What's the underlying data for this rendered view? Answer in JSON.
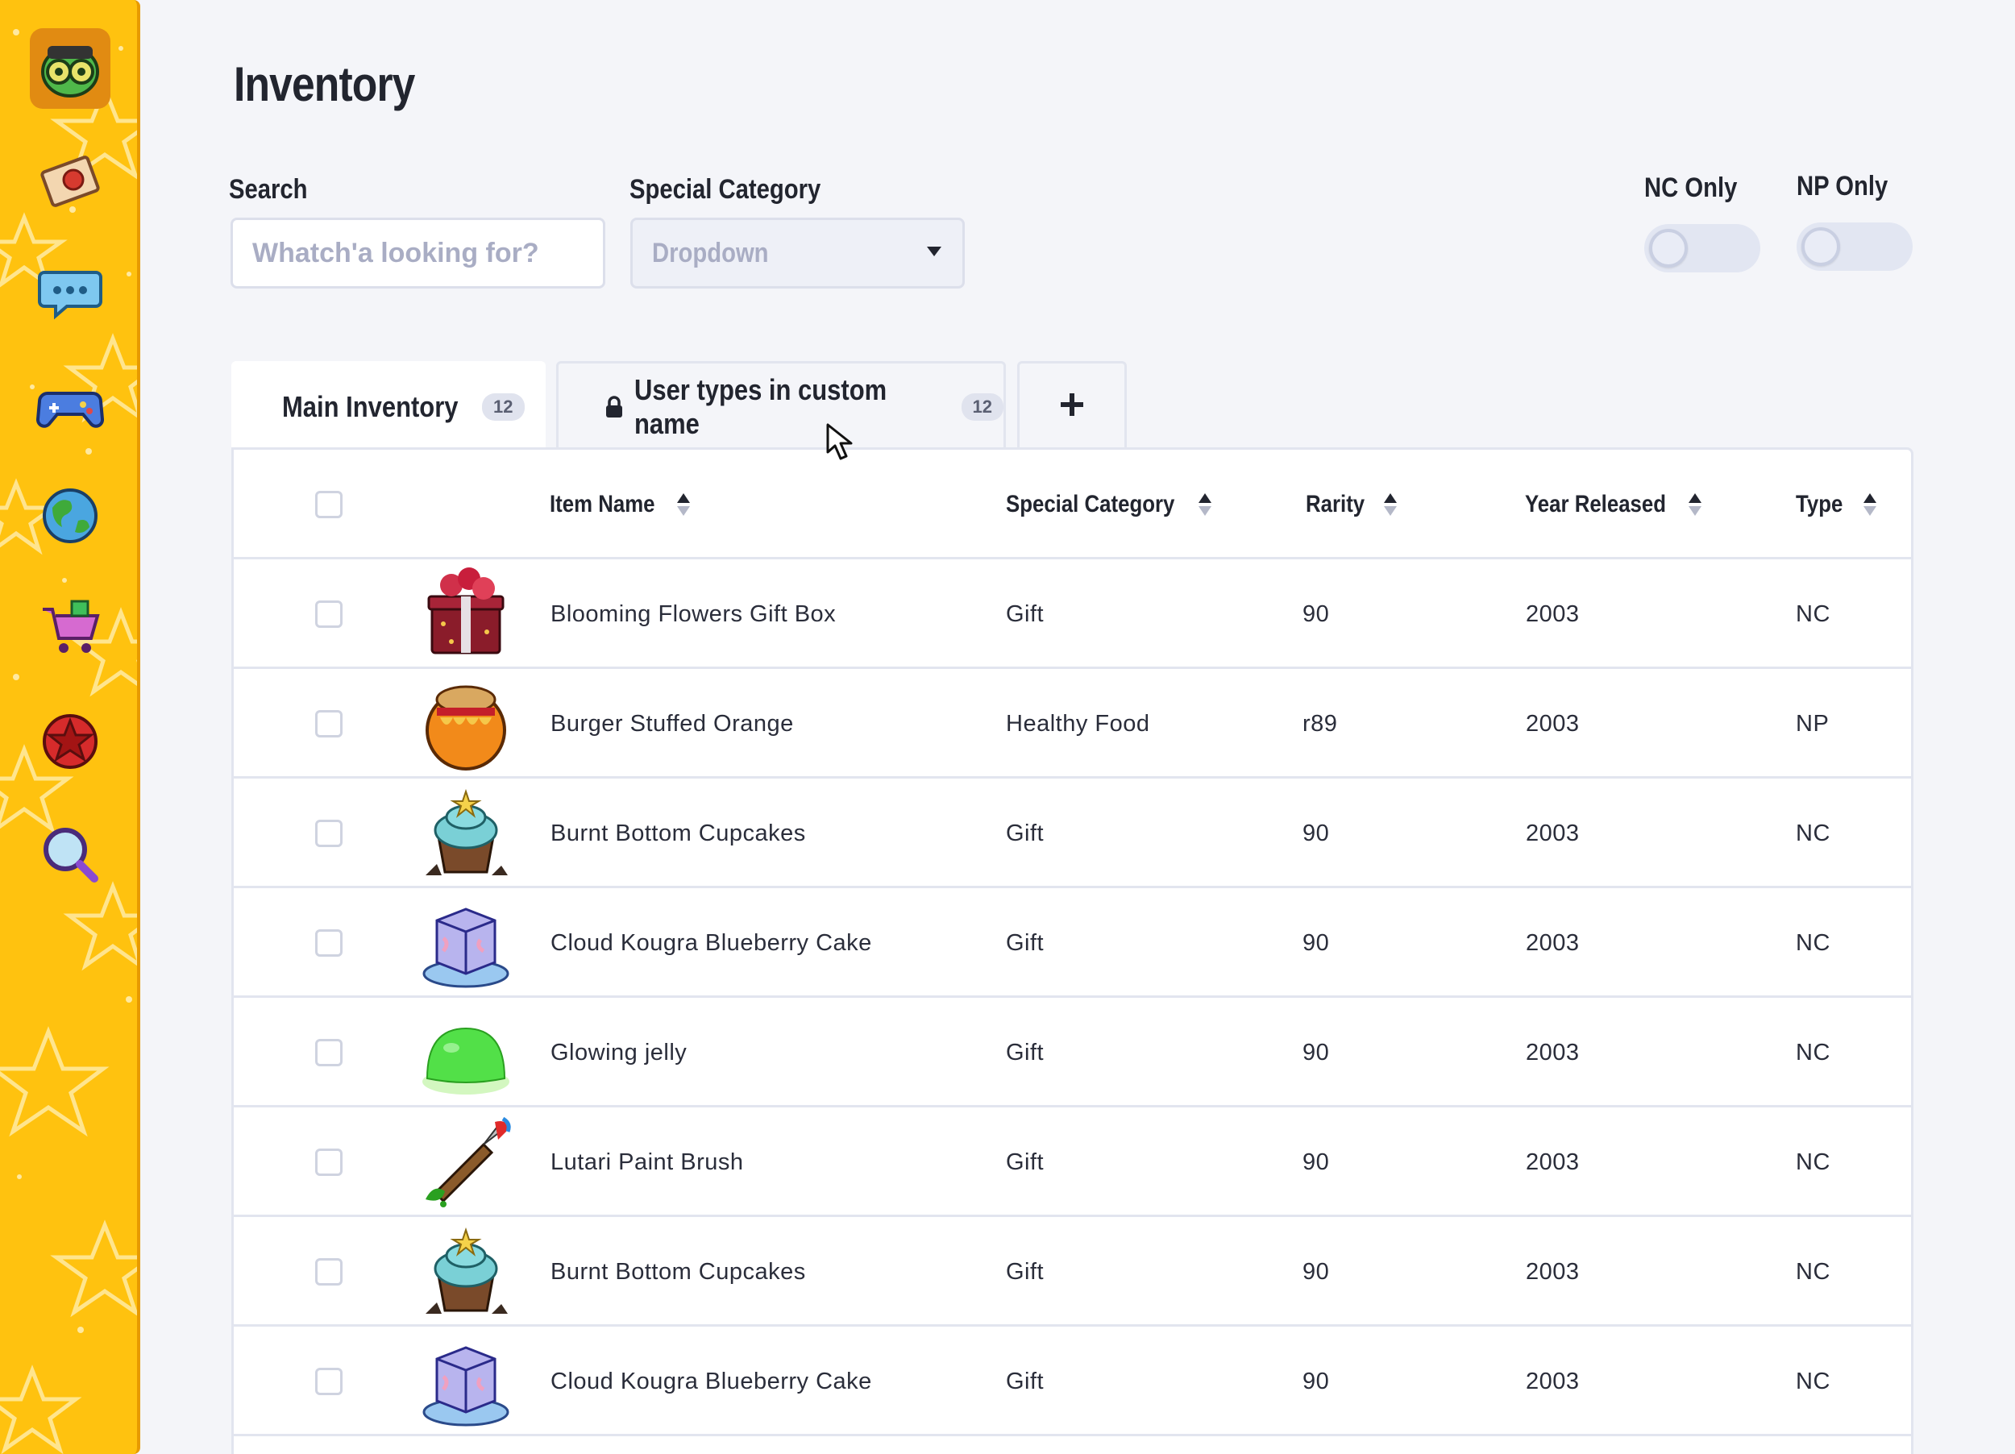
{
  "page": {
    "title": "Inventory"
  },
  "filters": {
    "search_label": "Search",
    "search_placeholder": "Whatch'a looking for?",
    "category_label": "Special Category",
    "category_value": "Dropdown",
    "nc_only_label": "NC Only",
    "nc_only_on": false,
    "np_only_label": "NP Only",
    "np_only_on": false
  },
  "tabs": [
    {
      "label": "Main Inventory",
      "count": "12",
      "active": true,
      "locked": false
    },
    {
      "label": "User types in custom name",
      "count": "12",
      "active": false,
      "locked": true
    },
    {
      "label": "+",
      "add": true
    }
  ],
  "table": {
    "headers": {
      "item_name": "Item Name",
      "special_category": "Special Category",
      "rarity": "Rarity",
      "year_released": "Year Released",
      "type": "Type"
    },
    "rows": [
      {
        "name": "Blooming Flowers Gift Box",
        "category": "Gift",
        "rarity": "90",
        "year": "2003",
        "type": "NC",
        "icon": "gift-box-icon"
      },
      {
        "name": "Burger Stuffed Orange",
        "category": "Healthy Food",
        "rarity": "r89",
        "year": "2003",
        "type": "NP",
        "icon": "burger-orange-icon"
      },
      {
        "name": "Burnt Bottom Cupcakes",
        "category": "Gift",
        "rarity": "90",
        "year": "2003",
        "type": "NC",
        "icon": "cupcake-icon"
      },
      {
        "name": "Cloud Kougra Blueberry Cake",
        "category": "Gift",
        "rarity": "90",
        "year": "2003",
        "type": "NC",
        "icon": "blueberry-cake-icon"
      },
      {
        "name": "Glowing jelly",
        "category": "Gift",
        "rarity": "90",
        "year": "2003",
        "type": "NC",
        "icon": "green-jelly-icon"
      },
      {
        "name": "Lutari Paint Brush",
        "category": "Gift",
        "rarity": "90",
        "year": "2003",
        "type": "NC",
        "icon": "paint-brush-icon"
      },
      {
        "name": "Burnt Bottom Cupcakes",
        "category": "Gift",
        "rarity": "90",
        "year": "2003",
        "type": "NC",
        "icon": "cupcake-icon"
      },
      {
        "name": "Cloud Kougra Blueberry Cake",
        "category": "Gift",
        "rarity": "90",
        "year": "2003",
        "type": "NC",
        "icon": "blueberry-cake-icon"
      }
    ]
  },
  "sidebar": {
    "items": [
      {
        "icon": "avatar-icon",
        "active": true
      },
      {
        "icon": "mail-icon"
      },
      {
        "icon": "chat-icon"
      },
      {
        "icon": "gamepad-icon"
      },
      {
        "icon": "world-icon"
      },
      {
        "icon": "shop-cart-icon"
      },
      {
        "icon": "star-badge-icon"
      },
      {
        "icon": "search-icon"
      }
    ]
  },
  "colors": {
    "sidebar_bg": "#ffc20f",
    "sidebar_border": "#e79a00",
    "page_bg": "#f4f5f9",
    "text": "#22252f",
    "muted": "#a9adc4"
  }
}
